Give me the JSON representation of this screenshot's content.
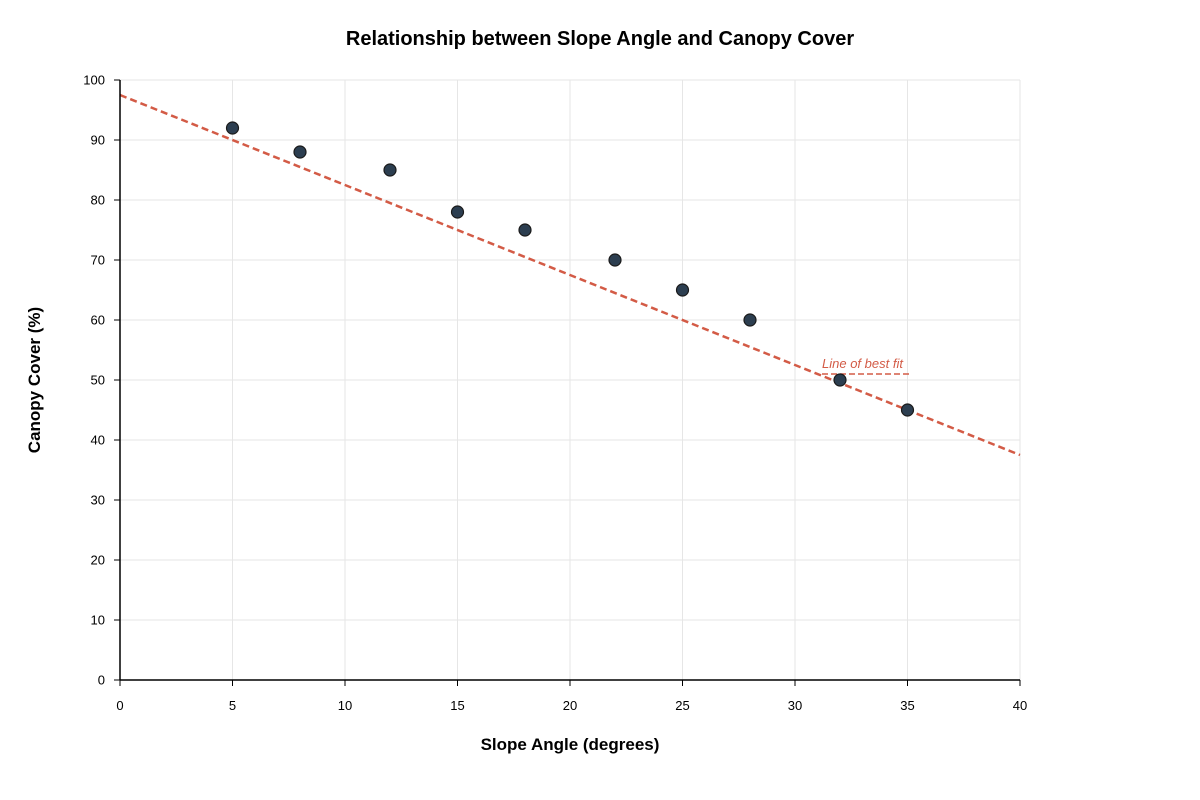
{
  "chart_data": {
    "type": "scatter",
    "title": "Relationship between Slope Angle and Canopy Cover",
    "xlabel": "Slope Angle (degrees)",
    "ylabel": "Canopy Cover (%)",
    "xlim": [
      0,
      40
    ],
    "ylim": [
      0,
      100
    ],
    "xticks": [
      0,
      5,
      10,
      15,
      20,
      25,
      30,
      35,
      40
    ],
    "yticks": [
      0,
      10,
      20,
      30,
      40,
      50,
      60,
      70,
      80,
      90,
      100
    ],
    "grid": true,
    "series": [
      {
        "x": [
          5,
          8,
          12,
          15,
          18,
          22,
          25,
          28,
          32,
          35
        ],
        "y": [
          92,
          88,
          85,
          78,
          75,
          70,
          65,
          60,
          50,
          45
        ]
      }
    ],
    "fit_line": {
      "label": "Line of best fit",
      "x": [
        0,
        40
      ],
      "y": [
        97.5,
        37.5
      ]
    },
    "colors": {
      "point_fill": "#2c3e50",
      "point_stroke": "#1a1a1a",
      "fit_line": "#d35b46"
    }
  }
}
